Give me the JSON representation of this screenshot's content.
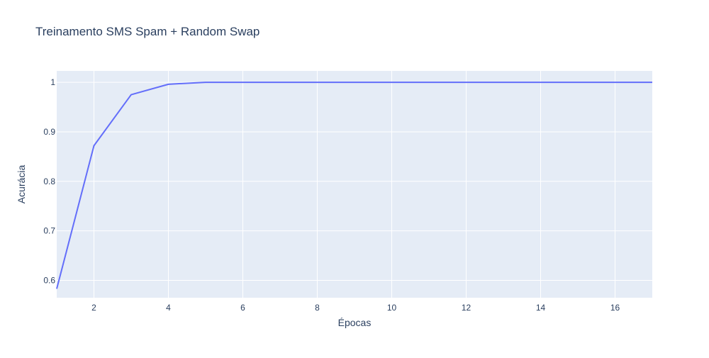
{
  "chart_data": {
    "type": "line",
    "title": "Treinamento SMS Spam + Random Swap",
    "xlabel": "Épocas",
    "ylabel": "Acurácia",
    "xlim": [
      1,
      17
    ],
    "ylim": [
      0.565,
      1.023
    ],
    "x_ticks": [
      2,
      4,
      6,
      8,
      10,
      12,
      14,
      16
    ],
    "y_ticks": [
      0.6,
      0.7,
      0.8,
      0.9,
      1
    ],
    "x_tick_labels": [
      "2",
      "4",
      "6",
      "8",
      "10",
      "12",
      "14",
      "16"
    ],
    "y_tick_labels": [
      "0.6",
      "0.7",
      "0.8",
      "0.9",
      "1"
    ],
    "grid": true,
    "series": [
      {
        "x": [
          1,
          2,
          3,
          4,
          5,
          6,
          7,
          8,
          9,
          10,
          11,
          12,
          13,
          14,
          15,
          16,
          17
        ],
        "y": [
          0.583,
          0.872,
          0.975,
          0.996,
          1.0,
          1.0,
          1.0,
          1.0,
          1.0,
          1.0,
          1.0,
          1.0,
          1.0,
          1.0,
          1.0,
          1.0,
          1.0
        ]
      }
    ],
    "colors": {
      "line": "#636efa",
      "plot_bg": "#e5ecf6",
      "grid": "#ffffff",
      "text": "#2a3f5f"
    }
  }
}
